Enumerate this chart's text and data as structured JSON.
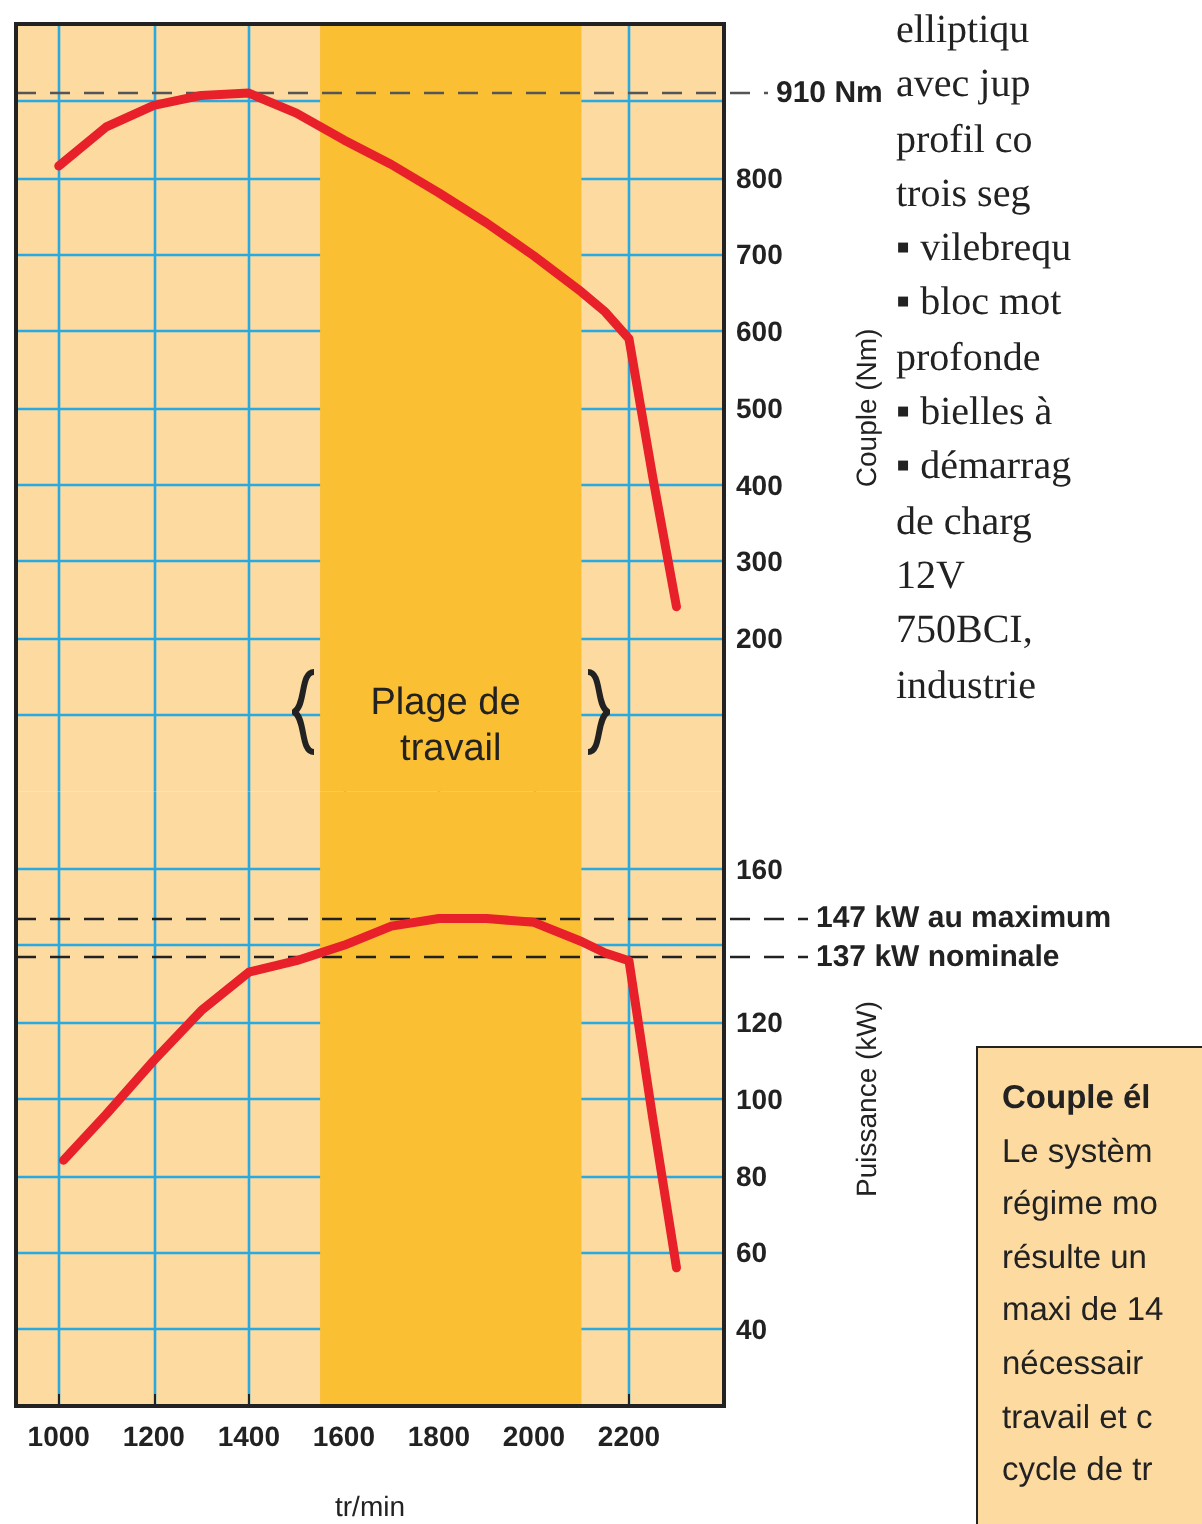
{
  "chart_data": [
    {
      "type": "line",
      "ylabel": "Couple (Nm)",
      "x": [
        1000,
        1100,
        1200,
        1300,
        1400,
        1500,
        1600,
        1700,
        1800,
        1900,
        2000,
        2100,
        2150,
        2200,
        2250,
        2300
      ],
      "series": [
        {
          "color": "#e8202a",
          "values": [
            815,
            866,
            894,
            907,
            910,
            884,
            849,
            817,
            780,
            741,
            698,
            651,
            625,
            590,
            410,
            241
          ]
        }
      ],
      "xlim": [
        910,
        2400
      ],
      "xticks": [
        1000,
        1200,
        1400,
        1600,
        1800,
        2000,
        2200
      ],
      "ylim": [
        0,
        1000
      ],
      "yticks": [
        {
          "value": 100,
          "label": null
        },
        200,
        300,
        400,
        500,
        600,
        700,
        800,
        {
          "value": 900,
          "label": null
        }
      ],
      "tick_labels": "y",
      "ref_lines": [
        {
          "axis": "y",
          "value": 910,
          "label": "910 Nm",
          "color": "#555555",
          "line_style": "dashed"
        }
      ],
      "bands": [
        {
          "axis": "x",
          "from": 1550,
          "to": 2100,
          "label": "Plage de travail",
          "color": "#fbbf33"
        }
      ],
      "annotations": [
        "elliptiqu\navec jup\nprofil co\ntrois seg\n▪ vilebrequ\n▪ bloc mot\nprofonde\n▪ bielles à\n▪ démarrag\nde charg\n12V\n750BCI,\nindustrie",
        "Couple él\nLe systèm\nrégime mo\nrésulte un\nmaxi de 14\nnécessair\ntravail et c\ncycle de tr"
      ],
      "grid": true,
      "marker": "none",
      "line_style": "solid"
    },
    {
      "type": "line",
      "xlabel": "tr/min",
      "ylabel": "Puissance (kW)",
      "x": [
        1010,
        1100,
        1200,
        1300,
        1400,
        1500,
        1600,
        1700,
        1800,
        1900,
        2000,
        2100,
        2150,
        2200,
        2250,
        2300
      ],
      "series": [
        {
          "color": "#e8202a",
          "values": [
            84,
            96,
            110,
            123,
            133,
            136,
            140,
            145,
            147,
            147,
            146,
            141,
            138,
            136,
            95,
            56
          ]
        }
      ],
      "xlim": [
        910,
        2400
      ],
      "xticks": [
        1000,
        1200,
        1400,
        1600,
        1800,
        2000,
        2200
      ],
      "ylim": [
        20,
        180
      ],
      "yticks": [
        40,
        60,
        80,
        100,
        120,
        {
          "value": 140,
          "label": null
        },
        160
      ],
      "ref_lines": [
        {
          "axis": "y",
          "value": 147,
          "label": "147 kW au maximum",
          "color": "#222222",
          "line_style": "dashed"
        },
        {
          "axis": "y",
          "value": 137,
          "label": "137 kW nominale",
          "color": "#222222",
          "line_style": "dashed"
        }
      ],
      "bands": [
        {
          "axis": "x",
          "from": 1550,
          "to": 2100,
          "color": "#fbbf33"
        }
      ],
      "grid": true,
      "marker": "none",
      "line_style": "solid"
    }
  ]
}
